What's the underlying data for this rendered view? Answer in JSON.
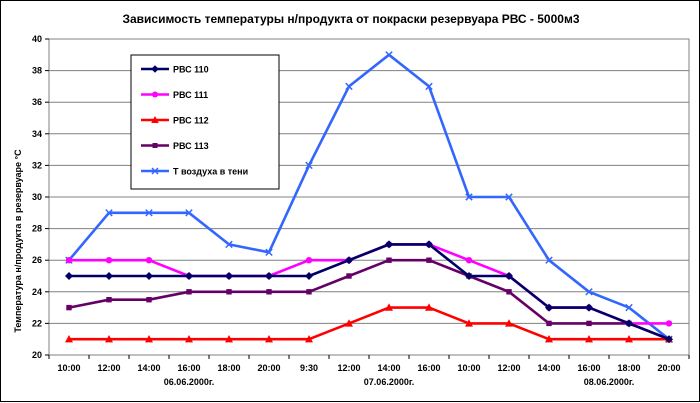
{
  "chart_data": {
    "type": "line",
    "title": "Зависимость температуры н/продукта от покраски резервуара  РВС -  5000м3",
    "ylabel": "Температура н/продукта в резервуаре °C",
    "xlabel": "",
    "ylim": [
      20,
      40
    ],
    "yticks": [
      20,
      22,
      24,
      26,
      28,
      30,
      32,
      34,
      36,
      38,
      40
    ],
    "grid": true,
    "legend_position": "top-left",
    "x": [
      "10:00",
      "12:00",
      "14:00",
      "16:00",
      "18:00",
      "20:00",
      "9:30",
      "12:00",
      "14:00",
      "16:00",
      "10:00",
      "12:00",
      "14:00",
      "16:00",
      "18:00",
      "20:00"
    ],
    "date_labels": [
      {
        "label": "06.06.2000г.",
        "at_index": 3
      },
      {
        "label": "07.06.2000г.",
        "at_index": 8
      },
      {
        "label": "08.06.2000г.",
        "at_index": 13.5
      }
    ],
    "series": [
      {
        "name": "РВС 110",
        "color": "#000066",
        "marker": "diamond",
        "values": [
          25,
          25,
          25,
          25,
          25,
          25,
          25,
          26,
          27,
          27,
          25,
          25,
          23,
          23,
          22,
          21
        ]
      },
      {
        "name": "РВС 111",
        "color": "#ff00ff",
        "marker": "circle",
        "values": [
          26,
          26,
          26,
          25,
          25,
          25,
          26,
          26,
          27,
          27,
          26,
          25,
          23,
          23,
          22,
          22
        ]
      },
      {
        "name": "РВС 112",
        "color": "#ff0000",
        "marker": "triangle",
        "values": [
          21,
          21,
          21,
          21,
          21,
          21,
          21,
          22,
          23,
          23,
          22,
          22,
          21,
          21,
          21,
          21
        ]
      },
      {
        "name": "РВС 113",
        "color": "#660066",
        "marker": "square",
        "values": [
          23,
          23.5,
          23.5,
          24,
          24,
          24,
          24,
          25,
          26,
          26,
          25,
          24,
          22,
          22,
          22,
          21
        ]
      },
      {
        "name": "Т воздуха  в тени",
        "color": "#3366ff",
        "marker": "x",
        "values": [
          26,
          29,
          29,
          29,
          27,
          26.5,
          32,
          37,
          39,
          37,
          30,
          30,
          26,
          24,
          23,
          21
        ]
      }
    ]
  }
}
